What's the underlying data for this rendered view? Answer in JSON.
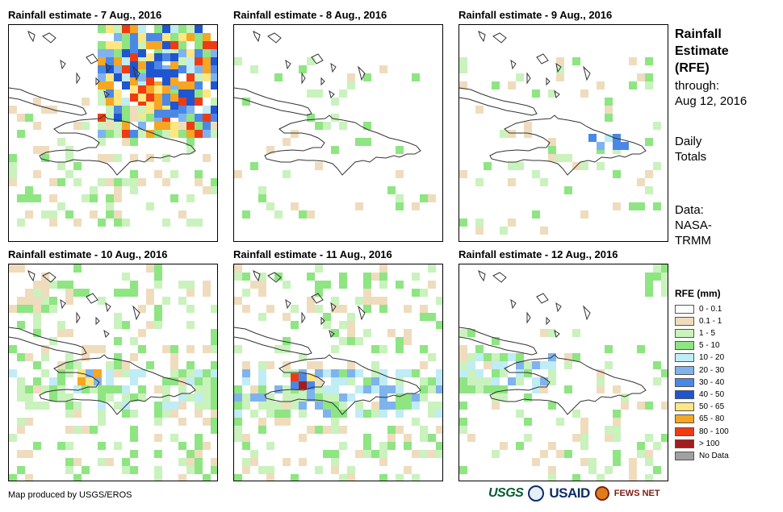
{
  "panels": [
    {
      "title": "Rainfall estimate - 7 Aug., 2016"
    },
    {
      "title": "Rainfall estimate - 8 Aug., 2016"
    },
    {
      "title": "Rainfall estimate - 9 Aug., 2016"
    },
    {
      "title": "Rainfall estimate - 10 Aug., 2016"
    },
    {
      "title": "Rainfall estimate - 11 Aug., 2016"
    },
    {
      "title": "Rainfall estimate - 12 Aug., 2016"
    }
  ],
  "side": {
    "title_lines": [
      "Rainfall",
      "Estimate",
      "(RFE)"
    ],
    "through_label": "through:",
    "through_date": "Aug 12, 2016",
    "daily_1": "Daily",
    "daily_2": "Totals",
    "data_1": "Data:",
    "data_2": "NASA-",
    "data_3": "TRMM"
  },
  "legend": {
    "title": "RFE (mm)",
    "items": [
      {
        "label": "0 - 0.1",
        "color": "#ffffff"
      },
      {
        "label": "0.1 - 1",
        "color": "#efdcbd"
      },
      {
        "label": "1 - 5",
        "color": "#c9f2bd"
      },
      {
        "label": "5 - 10",
        "color": "#8ee582"
      },
      {
        "label": "10 - 20",
        "color": "#bfecf5"
      },
      {
        "label": "20 - 30",
        "color": "#7fb3ee"
      },
      {
        "label": "30 - 40",
        "color": "#4b88e6"
      },
      {
        "label": "40 - 50",
        "color": "#1f55d0"
      },
      {
        "label": "50 - 65",
        "color": "#ffe680"
      },
      {
        "label": "65 - 80",
        "color": "#f5a623"
      },
      {
        "label": "80 - 100",
        "color": "#ee3b13"
      },
      {
        "label": "> 100",
        "color": "#a51c1c"
      },
      {
        "label": "No Data",
        "color": "#a0a0a0"
      }
    ]
  },
  "credit": "Map produced by USGS/EROS",
  "logos": {
    "usgs": "USGS",
    "usaid": "USAID",
    "fews": "FEWS NET"
  }
}
